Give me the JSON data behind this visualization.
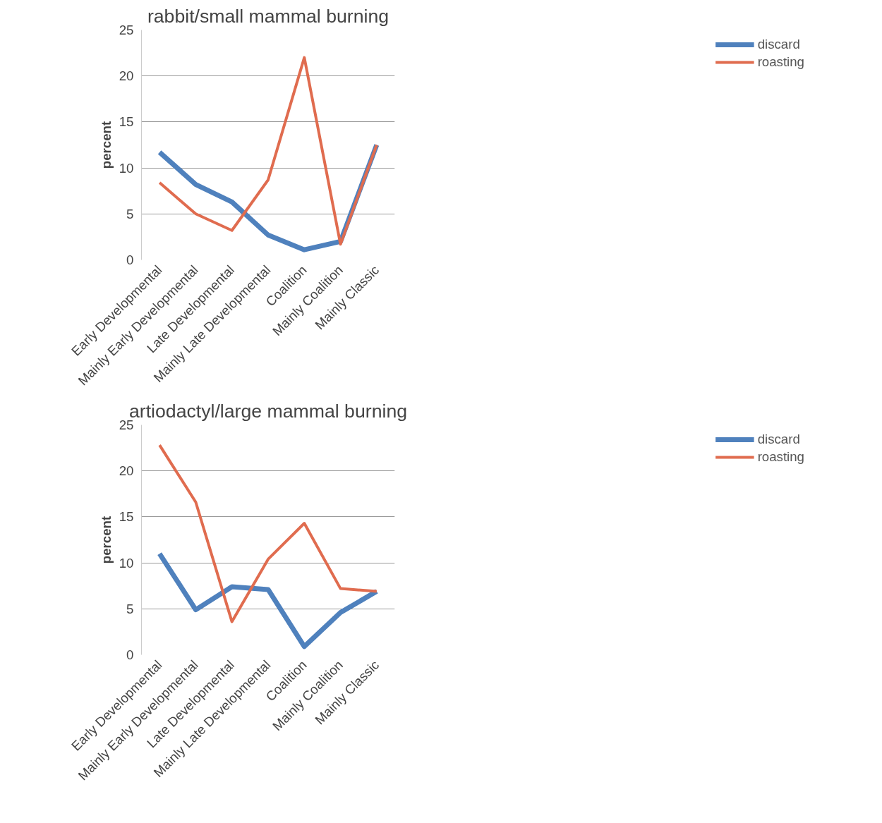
{
  "chart_data": [
    {
      "type": "line",
      "title": "rabbit/small mammal burning",
      "ylabel": "percent",
      "categories": [
        "Early Developmental",
        "Mainly Early Developmental",
        "Late Developmental",
        "Mainly Late Developmental",
        "Coalition",
        "Mainly Coalition",
        "Mainly Classic"
      ],
      "series": [
        {
          "name": "discard",
          "color": "#4f81bd",
          "values": [
            11.7,
            8.2,
            6.3,
            2.7,
            1.1,
            2.0,
            12.5
          ]
        },
        {
          "name": "roasting",
          "color": "#e06c4f",
          "values": [
            8.4,
            5.0,
            3.2,
            8.7,
            22.0,
            1.7,
            12.5
          ]
        }
      ],
      "ylim": [
        0,
        25
      ],
      "yticks": [
        0,
        5,
        10,
        15,
        20,
        25
      ],
      "grid": "y",
      "legend": "right",
      "marker": "none",
      "line_style": "solid"
    },
    {
      "type": "line",
      "title": "artiodactyl/large mammal burning",
      "ylabel": "percent",
      "categories": [
        "Early Developmental",
        "Mainly Early Developmental",
        "Late Developmental",
        "Mainly Late Developmental",
        "Coalition",
        "Mainly Coalition",
        "Mainly Classic"
      ],
      "series": [
        {
          "name": "discard",
          "color": "#4f81bd",
          "values": [
            11.0,
            4.9,
            7.4,
            7.1,
            0.9,
            4.6,
            6.9
          ]
        },
        {
          "name": "roasting",
          "color": "#e06c4f",
          "values": [
            22.8,
            16.6,
            3.6,
            10.4,
            14.3,
            7.2,
            6.9
          ]
        }
      ],
      "ylim": [
        0,
        25
      ],
      "yticks": [
        0,
        5,
        10,
        15,
        20,
        25
      ],
      "grid": "y",
      "legend": "right",
      "marker": "none",
      "line_style": "solid"
    }
  ]
}
